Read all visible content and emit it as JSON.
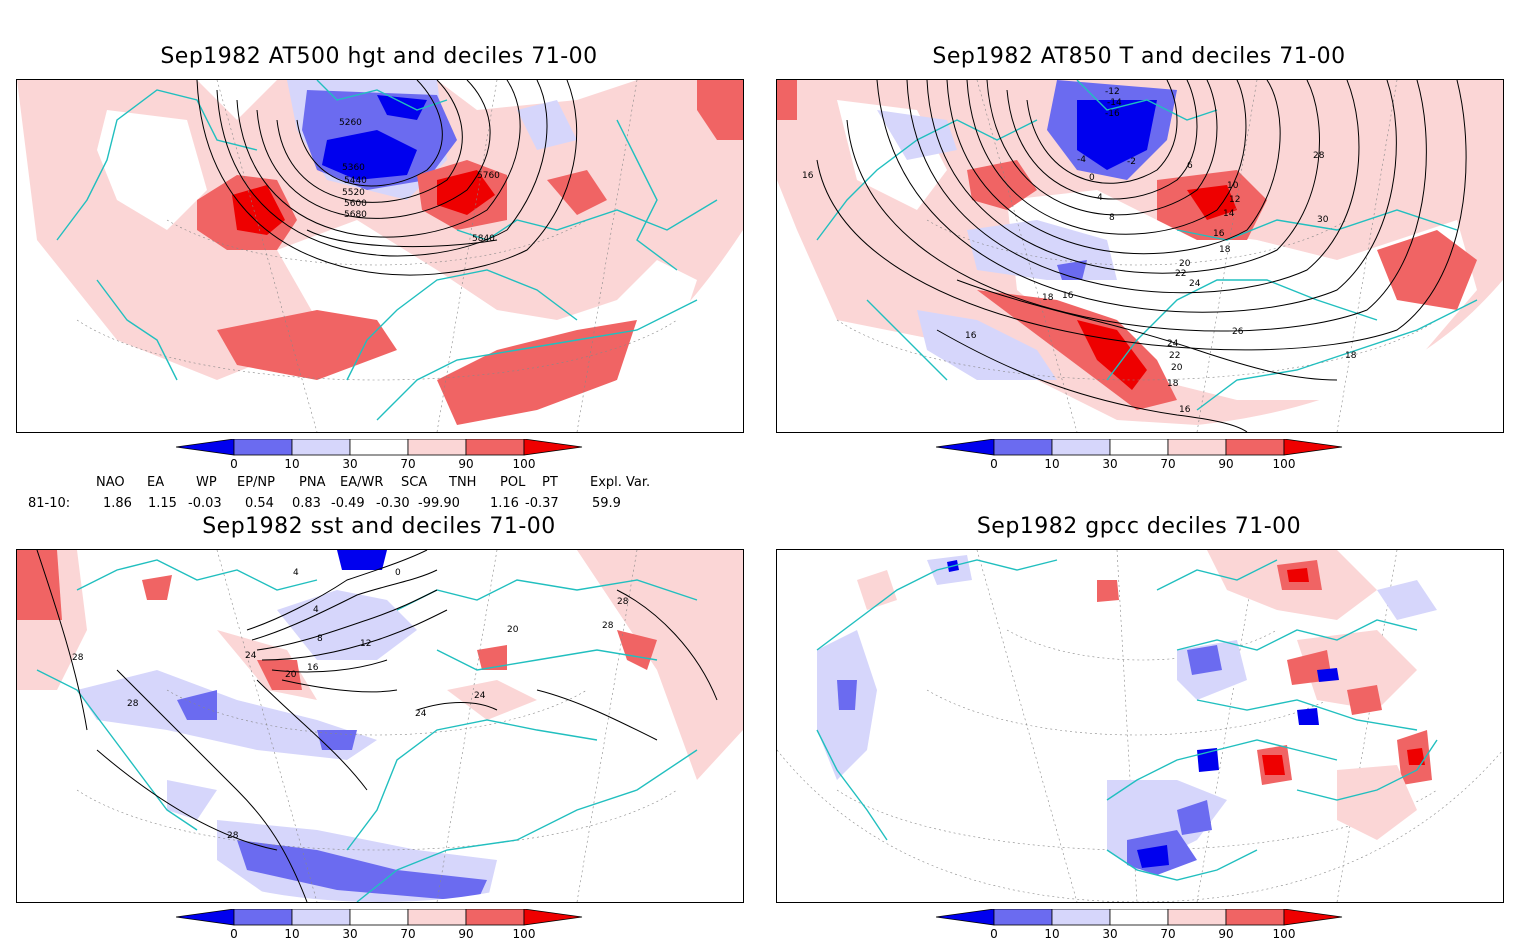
{
  "colors": {
    "deep_blue": "#0000ee",
    "mid_blue": "#6b6bf0",
    "light_blue": "#d6d6fb",
    "light_red": "#fbd6d6",
    "mid_red": "#f06464",
    "deep_red": "#ee0000",
    "map_lines": "#21bfbf",
    "contour": "#000000"
  },
  "colorbar": {
    "ticks": [
      "0",
      "10",
      "30",
      "70",
      "90",
      "100"
    ]
  },
  "panels": [
    {
      "id": "p1",
      "title": "Sep1982 AT500 hgt and deciles 71-00",
      "contour_labels": [
        "5260",
        "5360",
        "5440",
        "5520",
        "5600",
        "5680",
        "5760",
        "5840"
      ]
    },
    {
      "id": "p2",
      "title": "Sep1982 AT850 T and deciles 71-00",
      "contour_labels": [
        "-12",
        "-14",
        "-16",
        "-4",
        "-2",
        "0",
        "4",
        "8",
        "6",
        "10",
        "12",
        "14",
        "16",
        "18",
        "20",
        "22",
        "24",
        "26",
        "28",
        "30",
        "16",
        "18",
        "16",
        "24",
        "22",
        "20",
        "18",
        "16",
        "18",
        "16"
      ]
    },
    {
      "id": "p3",
      "title": "Sep1982 sst and deciles 71-00",
      "contour_labels": [
        "4",
        "0",
        "4",
        "8",
        "12",
        "16",
        "20",
        "24",
        "24",
        "20",
        "24",
        "28",
        "28",
        "28",
        "28",
        "28"
      ]
    },
    {
      "id": "p4",
      "title": "Sep1982 gpcc deciles 71-00",
      "contour_labels": []
    }
  ],
  "indices": {
    "headers": [
      "NAO",
      "EA",
      "WP",
      "EP/NP",
      "PNA",
      "EA/WR",
      "SCA",
      "TNH",
      "POL",
      "PT",
      "Expl. Var."
    ],
    "row_label": "81-10:",
    "values": [
      "1.86",
      "1.15",
      "-0.03",
      "0.54",
      "0.83",
      "-0.49",
      "-0.30",
      "-99.90",
      "1.16",
      "-0.37",
      "59.9"
    ]
  }
}
